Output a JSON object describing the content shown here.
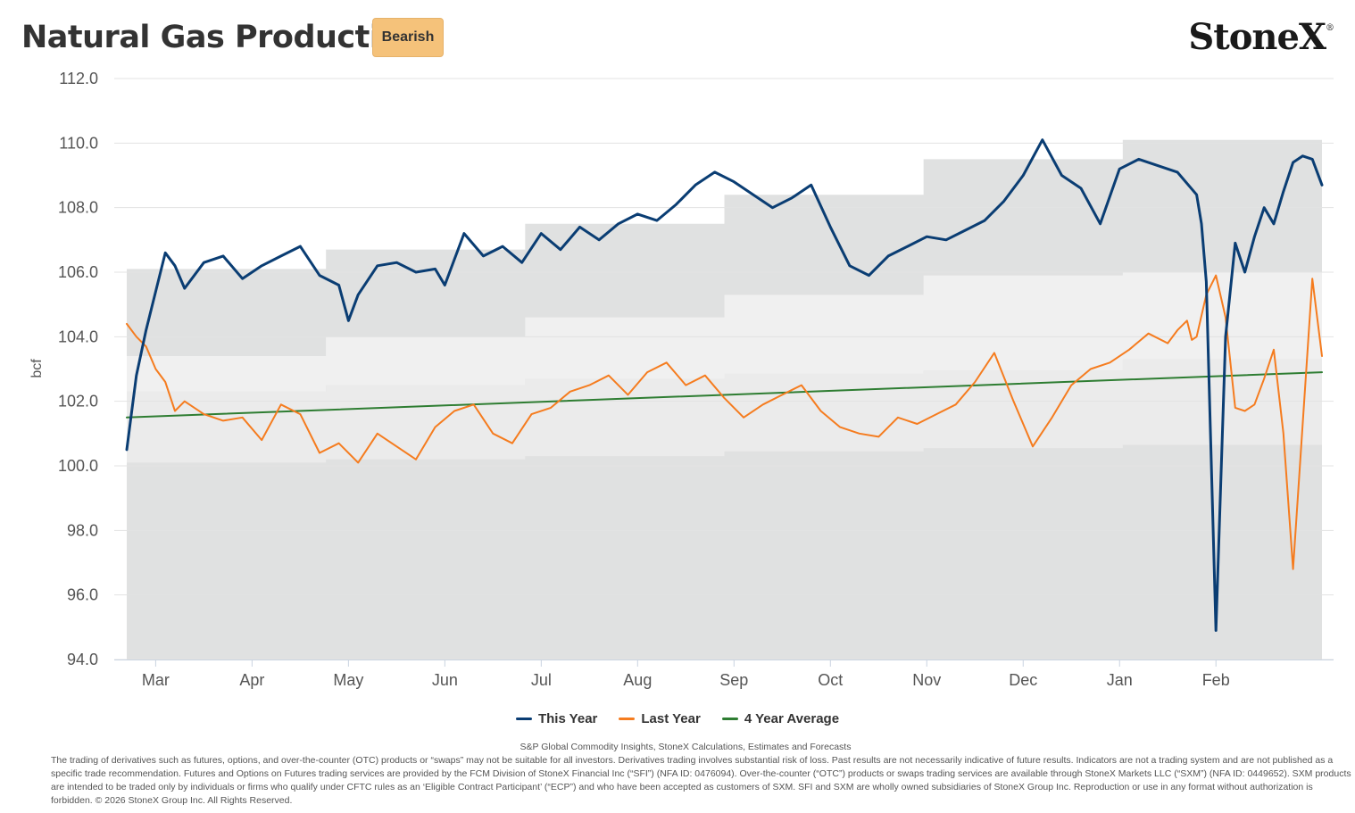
{
  "header": {
    "title": "Natural Gas Production",
    "badge": "Bearish",
    "logo": "StoneX",
    "logo_mark": "®"
  },
  "colors": {
    "this_year": "#0a3d73",
    "last_year": "#f57c1f",
    "avg": "#2e7d32",
    "outer_band": "#e0e1e1",
    "inner_band": "#f0f0f0"
  },
  "chart_data": {
    "type": "line",
    "ylabel": "bcf",
    "xlabel": "",
    "ylim": [
      94,
      112
    ],
    "yticks": [
      "112.0",
      "110.0",
      "108.0",
      "106.0",
      "104.0",
      "102.0",
      "100.0",
      "98.0",
      "96.0",
      "94.0"
    ],
    "x_start": 0,
    "x_end": 12.4,
    "month_labels": [
      "Mar",
      "Apr",
      "May",
      "Jun",
      "Jul",
      "Aug",
      "Sep",
      "Oct",
      "Nov",
      "Dec",
      "Jan",
      "Feb"
    ],
    "month_positions": [
      0.3,
      1.3,
      2.3,
      3.3,
      4.3,
      5.3,
      6.3,
      7.3,
      8.3,
      9.3,
      10.3,
      11.3
    ],
    "series": [
      {
        "name": "This Year",
        "x": [
          0,
          0.1,
          0.2,
          0.3,
          0.4,
          0.5,
          0.6,
          0.8,
          1.0,
          1.2,
          1.4,
          1.6,
          1.8,
          2.0,
          2.2,
          2.3,
          2.4,
          2.6,
          2.8,
          3.0,
          3.2,
          3.3,
          3.5,
          3.7,
          3.9,
          4.1,
          4.3,
          4.5,
          4.7,
          4.9,
          5.1,
          5.3,
          5.5,
          5.7,
          5.9,
          6.1,
          6.3,
          6.5,
          6.7,
          6.9,
          7.1,
          7.3,
          7.5,
          7.7,
          7.9,
          8.1,
          8.3,
          8.5,
          8.7,
          8.9,
          9.1,
          9.3,
          9.5,
          9.7,
          9.9,
          10.1,
          10.3,
          10.5,
          10.7,
          10.9,
          11.1,
          11.15,
          11.2,
          11.3,
          11.4,
          11.5,
          11.6,
          11.7,
          11.8,
          11.9,
          12.0,
          12.1,
          12.2,
          12.3,
          12.4
        ],
        "values": [
          100.5,
          102.8,
          104.2,
          105.4,
          106.6,
          106.2,
          105.5,
          106.3,
          106.5,
          105.8,
          106.2,
          106.5,
          106.8,
          105.9,
          105.6,
          104.5,
          105.3,
          106.2,
          106.3,
          106.0,
          106.1,
          105.6,
          107.2,
          106.5,
          106.8,
          106.3,
          107.2,
          106.7,
          107.4,
          107.0,
          107.5,
          107.8,
          107.6,
          108.1,
          108.7,
          109.1,
          108.8,
          108.4,
          108.0,
          108.3,
          108.7,
          107.4,
          106.2,
          105.9,
          106.5,
          106.8,
          107.1,
          107.0,
          107.3,
          107.6,
          108.2,
          109.0,
          110.1,
          109.0,
          108.6,
          107.5,
          109.2,
          109.5,
          109.3,
          109.1,
          108.4,
          107.5,
          105.7,
          94.9,
          104.0,
          106.9,
          106.0,
          107.1,
          108.0,
          107.5,
          108.5,
          109.4,
          109.6,
          109.5,
          108.7
        ]
      },
      {
        "name": "Last Year",
        "x": [
          0,
          0.1,
          0.2,
          0.3,
          0.4,
          0.5,
          0.6,
          0.8,
          1.0,
          1.2,
          1.4,
          1.6,
          1.8,
          2.0,
          2.2,
          2.4,
          2.6,
          2.8,
          3.0,
          3.2,
          3.4,
          3.6,
          3.8,
          4.0,
          4.2,
          4.4,
          4.6,
          4.8,
          5.0,
          5.2,
          5.4,
          5.6,
          5.8,
          6.0,
          6.2,
          6.4,
          6.6,
          6.8,
          7.0,
          7.2,
          7.4,
          7.6,
          7.8,
          8.0,
          8.2,
          8.4,
          8.6,
          8.8,
          9.0,
          9.2,
          9.4,
          9.6,
          9.8,
          10.0,
          10.2,
          10.4,
          10.6,
          10.8,
          10.9,
          11.0,
          11.05,
          11.1,
          11.2,
          11.3,
          11.4,
          11.5,
          11.6,
          11.7,
          11.8,
          11.9,
          12.0,
          12.1,
          12.2,
          12.3,
          12.4
        ],
        "values": [
          104.4,
          104.0,
          103.7,
          103.0,
          102.6,
          101.7,
          102.0,
          101.6,
          101.4,
          101.5,
          100.8,
          101.9,
          101.6,
          100.4,
          100.7,
          100.1,
          101.0,
          100.6,
          100.2,
          101.2,
          101.7,
          101.9,
          101.0,
          100.7,
          101.6,
          101.8,
          102.3,
          102.5,
          102.8,
          102.2,
          102.9,
          103.2,
          102.5,
          102.8,
          102.1,
          101.5,
          101.9,
          102.2,
          102.5,
          101.7,
          101.2,
          101.0,
          100.9,
          101.5,
          101.3,
          101.6,
          101.9,
          102.6,
          103.5,
          102.0,
          100.6,
          101.5,
          102.5,
          103.0,
          103.2,
          103.6,
          104.1,
          103.8,
          104.2,
          104.5,
          103.9,
          104.0,
          105.3,
          105.9,
          104.6,
          101.8,
          101.7,
          101.9,
          102.7,
          103.6,
          101.0,
          96.8,
          101.3,
          105.8,
          103.4
        ]
      },
      {
        "name": "4 Year Average",
        "x": [
          0,
          12.4
        ],
        "values": [
          101.5,
          102.9
        ]
      }
    ],
    "bands": {
      "outer_top": [
        106.1,
        106.7,
        107.5,
        108.4,
        109.5,
        110.1
      ],
      "outer_bottom": [
        100.1,
        100.2,
        100.3,
        100.45,
        100.55,
        100.65
      ],
      "inner_top": [
        103.4,
        104.0,
        104.6,
        105.3,
        105.9,
        106.0
      ],
      "inner_bottom": [
        102.3,
        102.5,
        102.7,
        102.85,
        102.95,
        103.3
      ]
    },
    "grid": true,
    "legend_position": "bottom"
  },
  "legend": [
    {
      "label": "This Year",
      "color": "#0a3d73"
    },
    {
      "label": "Last Year",
      "color": "#f57c1f"
    },
    {
      "label": "4 Year Average",
      "color": "#2e7d32"
    }
  ],
  "footer": {
    "source": "S&P Global Commodity Insights, StoneX Calculations, Estimates and Forecasts",
    "disclaimer": "The trading of derivatives such as futures, options, and over-the-counter (OTC) products or “swaps” may not be suitable for all investors. Derivatives trading involves substantial risk of loss. Past results are not necessarily indicative of future results. Indicators are not a trading system and are not published as a specific trade recommendation. Futures and Options on Futures trading services are provided by the FCM Division of StoneX Financial Inc (“SFI”) (NFA ID: 0476094). Over-the-counter (“OTC”) products or swaps trading services are available through StoneX Markets LLC (“SXM”) (NFA ID: 0449652). SXM products are intended to be traded only by individuals or firms who qualify under CFTC rules as an ‘Eligible Contract Participant’ (“ECP”) and who have been accepted as customers of SXM. SFI and SXM are wholly owned subsidiaries of StoneX Group Inc. Reproduction or use in any format without authorization is forbidden. © 2026 StoneX Group Inc. All Rights Reserved."
  }
}
